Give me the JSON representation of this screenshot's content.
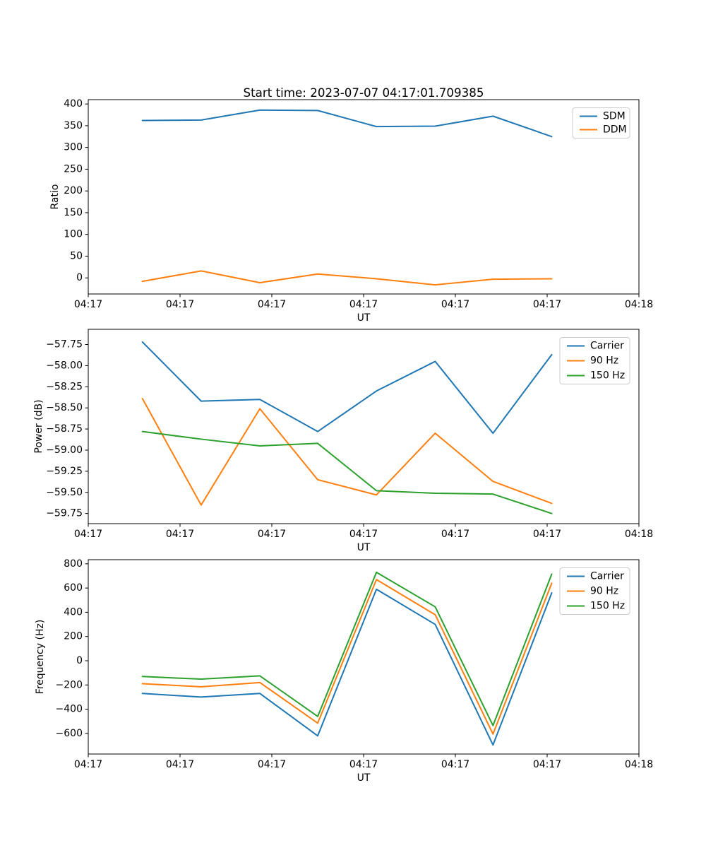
{
  "title": "Start time: 2023-07-07 04:17:01.709385",
  "chart_data": [
    {
      "type": "line",
      "title": "",
      "xlabel": "UT",
      "ylabel": "Ratio",
      "xlim": [
        0,
        60
      ],
      "ylim": [
        -37,
        410
      ],
      "grid": false,
      "legend_position": "upper right",
      "x_tick_seconds": [
        0,
        10,
        20,
        30,
        40,
        50,
        60
      ],
      "x_tick_labels": [
        "04:17",
        "04:17",
        "04:17",
        "04:17",
        "04:17",
        "04:17",
        "04:18"
      ],
      "y_tick_values": [
        0,
        50,
        100,
        150,
        200,
        250,
        300,
        350,
        400
      ],
      "y_tick_labels": [
        "0",
        "50",
        "100",
        "150",
        "200",
        "250",
        "300",
        "350",
        "400"
      ],
      "x_seconds": [
        5.9,
        12.3,
        18.7,
        25.0,
        31.4,
        37.8,
        44.1,
        50.5
      ],
      "series": [
        {
          "name": "SDM",
          "color": "#1f77b4",
          "values": [
            362,
            363,
            386,
            385,
            348,
            349,
            372,
            325
          ]
        },
        {
          "name": "DDM",
          "color": "#ff7f0e",
          "values": [
            -8,
            16,
            -11,
            9,
            -2,
            -16,
            -3,
            -2
          ]
        }
      ]
    },
    {
      "type": "line",
      "title": "",
      "xlabel": "UT",
      "ylabel": "Power (dB)",
      "xlim": [
        0,
        60
      ],
      "ylim": [
        -59.87,
        -57.57
      ],
      "grid": false,
      "legend_position": "upper right",
      "x_tick_seconds": [
        0,
        10,
        20,
        30,
        40,
        50,
        60
      ],
      "x_tick_labels": [
        "04:17",
        "04:17",
        "04:17",
        "04:17",
        "04:17",
        "04:17",
        "04:18"
      ],
      "y_tick_values": [
        -59.75,
        -59.5,
        -59.25,
        -59.0,
        -58.75,
        -58.5,
        -58.25,
        -58.0,
        -57.75
      ],
      "y_tick_labels": [
        "−59.75",
        "−59.50",
        "−59.25",
        "−59.00",
        "−58.75",
        "−58.50",
        "−58.25",
        "−58.00",
        "−57.75"
      ],
      "x_seconds": [
        5.9,
        12.3,
        18.7,
        25.0,
        31.4,
        37.8,
        44.1,
        50.5
      ],
      "series": [
        {
          "name": "Carrier",
          "color": "#1f77b4",
          "values": [
            -57.72,
            -58.42,
            -58.4,
            -58.78,
            -58.3,
            -57.95,
            -58.8,
            -57.87
          ]
        },
        {
          "name": "90 Hz",
          "color": "#ff7f0e",
          "values": [
            -58.39,
            -59.65,
            -58.51,
            -59.35,
            -59.53,
            -58.8,
            -59.37,
            -59.63
          ]
        },
        {
          "name": "150 Hz",
          "color": "#2ca02c",
          "values": [
            -58.78,
            -58.87,
            -58.95,
            -58.92,
            -59.48,
            -59.51,
            -59.52,
            -59.75
          ]
        }
      ]
    },
    {
      "type": "line",
      "title": "",
      "xlabel": "UT",
      "ylabel": "Frequency (Hz)",
      "xlim": [
        0,
        60
      ],
      "ylim": [
        -770,
        834
      ],
      "grid": false,
      "legend_position": "upper right",
      "x_tick_seconds": [
        0,
        10,
        20,
        30,
        40,
        50,
        60
      ],
      "x_tick_labels": [
        "04:17",
        "04:17",
        "04:17",
        "04:17",
        "04:17",
        "04:17",
        "04:18"
      ],
      "y_tick_values": [
        -600,
        -400,
        -200,
        0,
        200,
        400,
        600,
        800
      ],
      "y_tick_labels": [
        "−600",
        "−400",
        "−200",
        "0",
        "200",
        "400",
        "600",
        "800"
      ],
      "x_seconds": [
        5.9,
        12.3,
        18.7,
        25.0,
        31.4,
        37.8,
        44.1,
        50.5
      ],
      "series": [
        {
          "name": "Carrier",
          "color": "#1f77b4",
          "values": [
            -270,
            -300,
            -270,
            -620,
            590,
            300,
            -695,
            560
          ]
        },
        {
          "name": "90 Hz",
          "color": "#ff7f0e",
          "values": [
            -190,
            -215,
            -180,
            -515,
            670,
            380,
            -605,
            640
          ]
        },
        {
          "name": "150 Hz",
          "color": "#2ca02c",
          "values": [
            -130,
            -152,
            -125,
            -460,
            730,
            445,
            -535,
            715
          ]
        }
      ]
    }
  ]
}
